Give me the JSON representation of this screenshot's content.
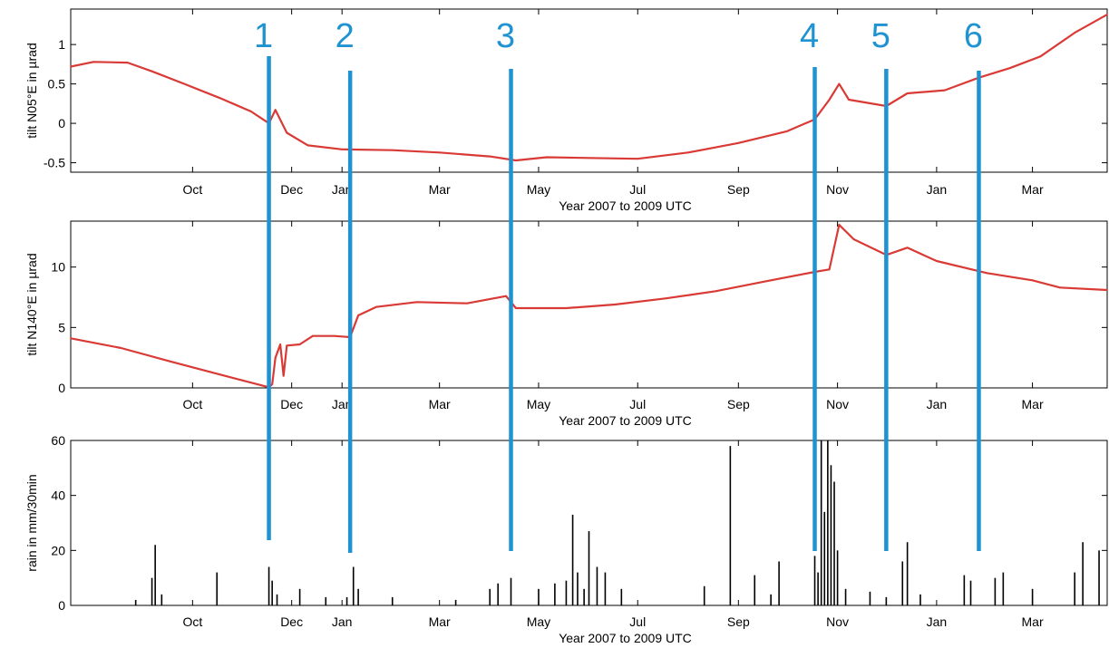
{
  "colors": {
    "tilt_series": "#d93a35",
    "rain_series": "#000000",
    "event_lines": "#1f93d1",
    "axes": "#000000",
    "background": "#ffffff"
  },
  "chart_data": [
    {
      "id": "tilt-n05",
      "type": "line",
      "xlabel": "Year 2007 to 2009 UTC",
      "ylabel": "tilt N05°E in µrad",
      "x_range": [
        "2007-08-01",
        "2009-04-30"
      ],
      "ylim": [
        -0.62,
        1.45
      ],
      "x_ticks": [
        {
          "date": "2007-10-15",
          "label": "Oct"
        },
        {
          "date": "2007-12-15",
          "label": "Dec"
        },
        {
          "date": "2008-01-15",
          "label": "Jan"
        },
        {
          "date": "2008-03-15",
          "label": "Mar"
        },
        {
          "date": "2008-05-15",
          "label": "May"
        },
        {
          "date": "2008-07-15",
          "label": "Jul"
        },
        {
          "date": "2008-09-15",
          "label": "Sep"
        },
        {
          "date": "2008-11-15",
          "label": "Nov"
        },
        {
          "date": "2009-01-15",
          "label": "Jan"
        },
        {
          "date": "2009-03-15",
          "label": "Mar"
        }
      ],
      "y_ticks": [
        {
          "value": -0.5,
          "label": "-0.5"
        },
        {
          "value": 0,
          "label": "0"
        },
        {
          "value": 0.5,
          "label": "0.5"
        },
        {
          "value": 1,
          "label": "1"
        }
      ],
      "series": [
        {
          "points": [
            [
              "2007-08-01",
              0.72
            ],
            [
              "2007-08-15",
              0.78
            ],
            [
              "2007-09-05",
              0.77
            ],
            [
              "2007-09-20",
              0.66
            ],
            [
              "2007-10-10",
              0.5
            ],
            [
              "2007-11-01",
              0.32
            ],
            [
              "2007-11-20",
              0.15
            ],
            [
              "2007-12-01",
              0.0
            ],
            [
              "2007-12-05",
              0.17
            ],
            [
              "2007-12-12",
              -0.12
            ],
            [
              "2007-12-25",
              -0.28
            ],
            [
              "2008-01-15",
              -0.33
            ],
            [
              "2008-02-15",
              -0.34
            ],
            [
              "2008-03-15",
              -0.37
            ],
            [
              "2008-04-15",
              -0.42
            ],
            [
              "2008-05-01",
              -0.47
            ],
            [
              "2008-05-20",
              -0.43
            ],
            [
              "2008-06-15",
              -0.44
            ],
            [
              "2008-07-15",
              -0.45
            ],
            [
              "2008-08-15",
              -0.37
            ],
            [
              "2008-09-15",
              -0.25
            ],
            [
              "2008-10-15",
              -0.1
            ],
            [
              "2008-11-01",
              0.05
            ],
            [
              "2008-11-10",
              0.3
            ],
            [
              "2008-11-16",
              0.5
            ],
            [
              "2008-11-22",
              0.3
            ],
            [
              "2008-12-15",
              0.22
            ],
            [
              "2008-12-28",
              0.38
            ],
            [
              "2009-01-20",
              0.42
            ],
            [
              "2009-02-10",
              0.58
            ],
            [
              "2009-03-01",
              0.7
            ],
            [
              "2009-03-20",
              0.85
            ],
            [
              "2009-04-10",
              1.15
            ],
            [
              "2009-04-30",
              1.38
            ]
          ]
        }
      ]
    },
    {
      "id": "tilt-n140",
      "type": "line",
      "xlabel": "Year 2007 to 2009 UTC",
      "ylabel": "tilt N140°E in µrad",
      "x_range": [
        "2007-08-01",
        "2009-04-30"
      ],
      "ylim": [
        0,
        13.8
      ],
      "x_ticks": [
        {
          "date": "2007-10-15",
          "label": "Oct"
        },
        {
          "date": "2007-12-15",
          "label": "Dec"
        },
        {
          "date": "2008-01-15",
          "label": "Jan"
        },
        {
          "date": "2008-03-15",
          "label": "Mar"
        },
        {
          "date": "2008-05-15",
          "label": "May"
        },
        {
          "date": "2008-07-15",
          "label": "Jul"
        },
        {
          "date": "2008-09-15",
          "label": "Sep"
        },
        {
          "date": "2008-11-15",
          "label": "Nov"
        },
        {
          "date": "2009-01-15",
          "label": "Jan"
        },
        {
          "date": "2009-03-15",
          "label": "Mar"
        }
      ],
      "y_ticks": [
        {
          "value": 0,
          "label": "0"
        },
        {
          "value": 5,
          "label": "5"
        },
        {
          "value": 10,
          "label": "10"
        }
      ],
      "series": [
        {
          "points": [
            [
              "2007-08-01",
              4.1
            ],
            [
              "2007-09-01",
              3.3
            ],
            [
              "2007-10-01",
              2.2
            ],
            [
              "2007-11-01",
              1.1
            ],
            [
              "2007-12-01",
              0.05
            ],
            [
              "2007-12-03",
              0.3
            ],
            [
              "2007-12-05",
              2.5
            ],
            [
              "2007-12-08",
              3.6
            ],
            [
              "2007-12-10",
              1.0
            ],
            [
              "2007-12-12",
              3.5
            ],
            [
              "2007-12-20",
              3.6
            ],
            [
              "2007-12-28",
              4.3
            ],
            [
              "2008-01-10",
              4.3
            ],
            [
              "2008-01-20",
              4.2
            ],
            [
              "2008-01-25",
              6.0
            ],
            [
              "2008-02-05",
              6.7
            ],
            [
              "2008-03-01",
              7.1
            ],
            [
              "2008-04-01",
              7.0
            ],
            [
              "2008-04-25",
              7.6
            ],
            [
              "2008-05-01",
              6.6
            ],
            [
              "2008-06-01",
              6.6
            ],
            [
              "2008-07-01",
              6.9
            ],
            [
              "2008-08-01",
              7.4
            ],
            [
              "2008-09-01",
              8.0
            ],
            [
              "2008-10-01",
              8.8
            ],
            [
              "2008-11-01",
              9.6
            ],
            [
              "2008-11-10",
              9.8
            ],
            [
              "2008-11-16",
              13.5
            ],
            [
              "2008-11-25",
              12.3
            ],
            [
              "2008-12-15",
              11.0
            ],
            [
              "2008-12-28",
              11.6
            ],
            [
              "2009-01-15",
              10.5
            ],
            [
              "2009-02-15",
              9.5
            ],
            [
              "2009-03-15",
              8.9
            ],
            [
              "2009-04-01",
              8.3
            ],
            [
              "2009-04-30",
              8.1
            ]
          ]
        }
      ]
    },
    {
      "id": "rain",
      "type": "bar",
      "xlabel": "Year 2007 to 2009 UTC",
      "ylabel": "rain in mm/30min",
      "x_range": [
        "2007-08-01",
        "2009-04-30"
      ],
      "ylim": [
        0,
        60
      ],
      "x_ticks": [
        {
          "date": "2007-10-15",
          "label": "Oct"
        },
        {
          "date": "2007-12-15",
          "label": "Dec"
        },
        {
          "date": "2008-01-15",
          "label": "Jan"
        },
        {
          "date": "2008-03-15",
          "label": "Mar"
        },
        {
          "date": "2008-05-15",
          "label": "May"
        },
        {
          "date": "2008-07-15",
          "label": "Jul"
        },
        {
          "date": "2008-09-15",
          "label": "Sep"
        },
        {
          "date": "2008-11-15",
          "label": "Nov"
        },
        {
          "date": "2009-01-15",
          "label": "Jan"
        },
        {
          "date": "2009-03-15",
          "label": "Mar"
        }
      ],
      "y_ticks": [
        {
          "value": 0,
          "label": "0"
        },
        {
          "value": 20,
          "label": "20"
        },
        {
          "value": 40,
          "label": "40"
        },
        {
          "value": 60,
          "label": "60"
        }
      ],
      "series": [
        {
          "points": [
            [
              "2007-09-10",
              2
            ],
            [
              "2007-09-20",
              10
            ],
            [
              "2007-09-22",
              22
            ],
            [
              "2007-09-26",
              4
            ],
            [
              "2007-10-30",
              12
            ],
            [
              "2007-12-01",
              14
            ],
            [
              "2007-12-03",
              9
            ],
            [
              "2007-12-06",
              4
            ],
            [
              "2007-12-20",
              6
            ],
            [
              "2008-01-05",
              3
            ],
            [
              "2008-01-18",
              3
            ],
            [
              "2008-01-22",
              14
            ],
            [
              "2008-01-25",
              6
            ],
            [
              "2008-02-15",
              3
            ],
            [
              "2008-03-25",
              2
            ],
            [
              "2008-04-15",
              6
            ],
            [
              "2008-04-20",
              8
            ],
            [
              "2008-04-28",
              10
            ],
            [
              "2008-05-15",
              6
            ],
            [
              "2008-05-25",
              8
            ],
            [
              "2008-06-01",
              9
            ],
            [
              "2008-06-05",
              33
            ],
            [
              "2008-06-08",
              12
            ],
            [
              "2008-06-12",
              6
            ],
            [
              "2008-06-15",
              27
            ],
            [
              "2008-06-20",
              14
            ],
            [
              "2008-06-25",
              12
            ],
            [
              "2008-07-05",
              6
            ],
            [
              "2008-08-25",
              7
            ],
            [
              "2008-09-10",
              58
            ],
            [
              "2008-09-25",
              11
            ],
            [
              "2008-10-05",
              4
            ],
            [
              "2008-10-10",
              16
            ],
            [
              "2008-11-01",
              18
            ],
            [
              "2008-11-03",
              12
            ],
            [
              "2008-11-05",
              60
            ],
            [
              "2008-11-07",
              34
            ],
            [
              "2008-11-09",
              60
            ],
            [
              "2008-11-11",
              51
            ],
            [
              "2008-11-13",
              45
            ],
            [
              "2008-11-15",
              20
            ],
            [
              "2008-11-20",
              6
            ],
            [
              "2008-12-05",
              5
            ],
            [
              "2008-12-15",
              3
            ],
            [
              "2008-12-25",
              16
            ],
            [
              "2008-12-28",
              23
            ],
            [
              "2009-01-05",
              4
            ],
            [
              "2009-02-01",
              11
            ],
            [
              "2009-02-05",
              9
            ],
            [
              "2009-02-20",
              10
            ],
            [
              "2009-02-25",
              12
            ],
            [
              "2009-03-15",
              6
            ],
            [
              "2009-04-10",
              12
            ],
            [
              "2009-04-15",
              23
            ],
            [
              "2009-04-25",
              20
            ]
          ]
        }
      ]
    }
  ],
  "events": [
    {
      "label": "1",
      "date": "2007-12-01"
    },
    {
      "label": "2",
      "date": "2008-01-20"
    },
    {
      "label": "3",
      "date": "2008-04-28"
    },
    {
      "label": "4",
      "date": "2008-11-01"
    },
    {
      "label": "5",
      "date": "2008-12-15"
    },
    {
      "label": "6",
      "date": "2009-02-10"
    }
  ]
}
